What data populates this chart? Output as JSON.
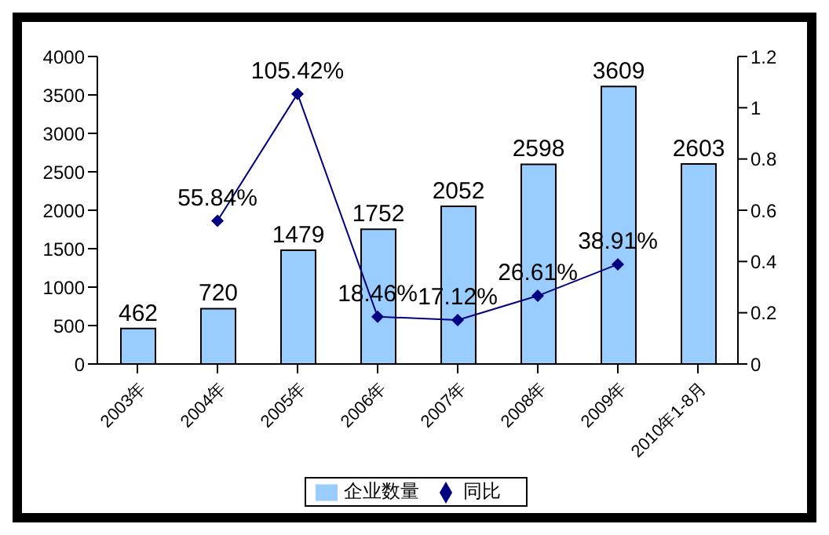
{
  "chart_data": {
    "type": "bar",
    "categories": [
      "2003年",
      "2004年",
      "2005年",
      "2006年",
      "2007年",
      "2008年",
      "2009年",
      "2010年1-8月"
    ],
    "series": [
      {
        "name": "企业数量",
        "color": "#99ccff",
        "values": [
          462,
          720,
          1479,
          1752,
          2052,
          2598,
          3609,
          2603
        ],
        "data_labels": true
      },
      {
        "name": "同比",
        "type": "line",
        "axis": "y2",
        "color": "#000080",
        "marker": "diamond",
        "values": [
          null,
          0.5584,
          1.0542,
          0.1846,
          0.1712,
          0.2661,
          0.3891,
          null
        ],
        "value_labels": [
          null,
          "55.84%",
          "105.42%",
          "18.46%",
          "17.12%",
          "26.61%",
          "38.91%",
          null
        ]
      }
    ],
    "ylim": [
      0,
      4000
    ],
    "yticks": [
      0,
      500,
      1000,
      1500,
      2000,
      2500,
      3000,
      3500,
      4000
    ],
    "y2lim": [
      0,
      1.2
    ],
    "y2ticks": [
      0,
      0.2,
      0.4,
      0.6,
      0.8,
      1,
      1.2
    ],
    "grid": false,
    "legend": "bottom"
  }
}
